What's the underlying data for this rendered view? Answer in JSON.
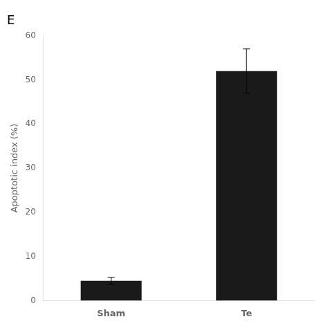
{
  "chart_data": {
    "type": "bar",
    "title": "E",
    "ylabel": "Apoptotic index (%)",
    "categories": [
      "Sham",
      "Te"
    ],
    "values": [
      4.5,
      52.0
    ],
    "errors": [
      0.8,
      5.0
    ],
    "color": "#1a1a1a",
    "ylim": [
      0,
      60
    ],
    "yticks": [
      0,
      10,
      20,
      30,
      40,
      50,
      60
    ],
    "grid": false
  }
}
